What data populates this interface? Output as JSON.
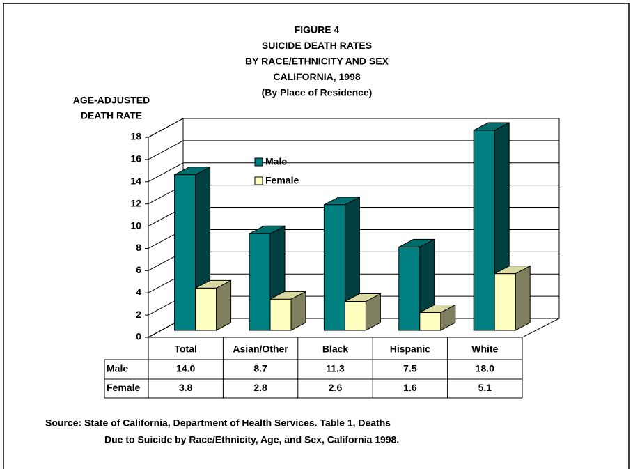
{
  "chart_data": {
    "type": "bar3d",
    "title": [
      "FIGURE 4",
      "SUICIDE DEATH RATES",
      "BY RACE/ETHNICITY AND SEX",
      "CALIFORNIA, 1998",
      "(By Place of Residence)"
    ],
    "ylabel": [
      "AGE-ADJUSTED",
      "DEATH RATE"
    ],
    "categories": [
      "Total",
      "Asian/Other",
      "Black",
      "Hispanic",
      "White"
    ],
    "series": [
      {
        "name": "Male",
        "color": "#008080",
        "values": [
          14.0,
          8.7,
          11.3,
          7.5,
          18.0
        ],
        "value_labels": [
          "14.0",
          "8.7",
          "11.3",
          "7.5",
          "18.0"
        ]
      },
      {
        "name": "Female",
        "color": "#ffffc0",
        "values": [
          3.8,
          2.8,
          2.6,
          1.6,
          5.1
        ],
        "value_labels": [
          "3.8",
          "2.8",
          "2.6",
          "1.6",
          "5.1"
        ]
      }
    ],
    "ylim": [
      0,
      18
    ],
    "yticks": [
      0,
      2,
      4,
      6,
      8,
      10,
      12,
      14,
      16,
      18
    ],
    "grid": true,
    "source": [
      "Source:  State of California, Department of Health Services.  Table 1, Deaths",
      "Due to Suicide by Race/Ethnicity, Age, and Sex, California 1998."
    ]
  }
}
